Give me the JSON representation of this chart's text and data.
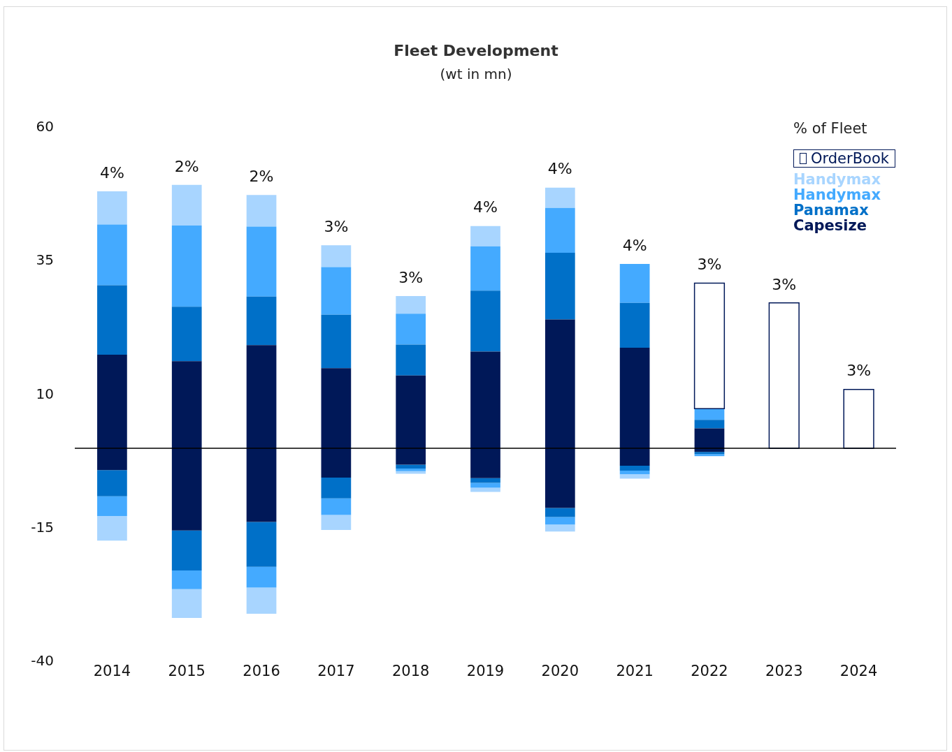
{
  "chart_data": {
    "type": "bar",
    "title": "Fleet Development",
    "subtitle": "(wt in mn)",
    "legend_title": "% of Fleet",
    "categories": [
      "2014",
      "2015",
      "2016",
      "2017",
      "2018",
      "2019",
      "2020",
      "2021",
      "2022",
      "2023",
      "2024"
    ],
    "stacked": true,
    "series": [
      {
        "name": "Capesize",
        "color": "#001858",
        "values": [
          17.5,
          16.3,
          19.3,
          15.0,
          13.6,
          18.1,
          24.1,
          18.8,
          3.7,
          null,
          null
        ]
      },
      {
        "name": "Panamax",
        "color": "#0070c8",
        "values": [
          13.0,
          10.2,
          9.1,
          10.0,
          5.8,
          11.4,
          12.5,
          8.4,
          1.6,
          null,
          null
        ]
      },
      {
        "name": "Handymax",
        "color": "#44aaff",
        "values": [
          11.4,
          15.2,
          13.1,
          8.9,
          5.8,
          8.3,
          8.4,
          7.3,
          2.1,
          null,
          null
        ]
      },
      {
        "name": "Handymax",
        "color": "#a8d5ff",
        "values": [
          6.2,
          7.6,
          5.9,
          4.1,
          3.3,
          3.8,
          3.8,
          null,
          null,
          null,
          null
        ]
      },
      {
        "name": "OrderBook",
        "color": "#001858",
        "line_style": "solid",
        "values": [
          null,
          null,
          null,
          null,
          null,
          null,
          null,
          null,
          23.5,
          27.2,
          11.0
        ]
      },
      {
        "color": "#001858",
        "values": [
          -4.1,
          -15.4,
          -13.8,
          -5.5,
          -3.1,
          -5.6,
          -11.2,
          -3.3,
          -0.7,
          null,
          null
        ]
      },
      {
        "color": "#0070c8",
        "values": [
          -4.9,
          -7.5,
          -8.4,
          -3.9,
          -0.7,
          -0.9,
          -1.7,
          -0.9,
          -0.4,
          null,
          null
        ]
      },
      {
        "color": "#44aaff",
        "values": [
          -3.7,
          -3.5,
          -3.9,
          -3.1,
          -0.5,
          -0.9,
          -1.4,
          -0.7,
          -0.4,
          null,
          null
        ]
      },
      {
        "color": "#a8d5ff",
        "values": [
          -4.6,
          -5.4,
          -4.9,
          -2.8,
          -0.5,
          -0.8,
          -1.3,
          -0.8,
          null,
          null,
          null
        ]
      }
    ],
    "annotations": [
      {
        "text": "4%",
        "x": "2014",
        "y": 48.1
      },
      {
        "text": "2%",
        "x": "2015",
        "y": 49.3
      },
      {
        "text": "2%",
        "x": "2016",
        "y": 47.4
      },
      {
        "text": "3%",
        "x": "2017",
        "y": 38.0
      },
      {
        "text": "3%",
        "x": "2018",
        "y": 28.5
      },
      {
        "text": "4%",
        "x": "2019",
        "y": 41.6
      },
      {
        "text": "4%",
        "x": "2020",
        "y": 48.8
      },
      {
        "text": "4%",
        "x": "2021",
        "y": 34.5
      },
      {
        "text": "3%",
        "x": "2022",
        "y": 30.9
      },
      {
        "text": "3%",
        "x": "2023",
        "y": 27.2
      },
      {
        "text": "3%",
        "x": "2024",
        "y": 11.0
      }
    ],
    "ylim": [
      -40,
      60
    ],
    "yticks": [
      -40,
      -15,
      10,
      35,
      60
    ],
    "ref_lines": [
      {
        "axis": "y",
        "value": 0,
        "color": "#000000"
      }
    ],
    "grid": false,
    "legend": "top right"
  }
}
